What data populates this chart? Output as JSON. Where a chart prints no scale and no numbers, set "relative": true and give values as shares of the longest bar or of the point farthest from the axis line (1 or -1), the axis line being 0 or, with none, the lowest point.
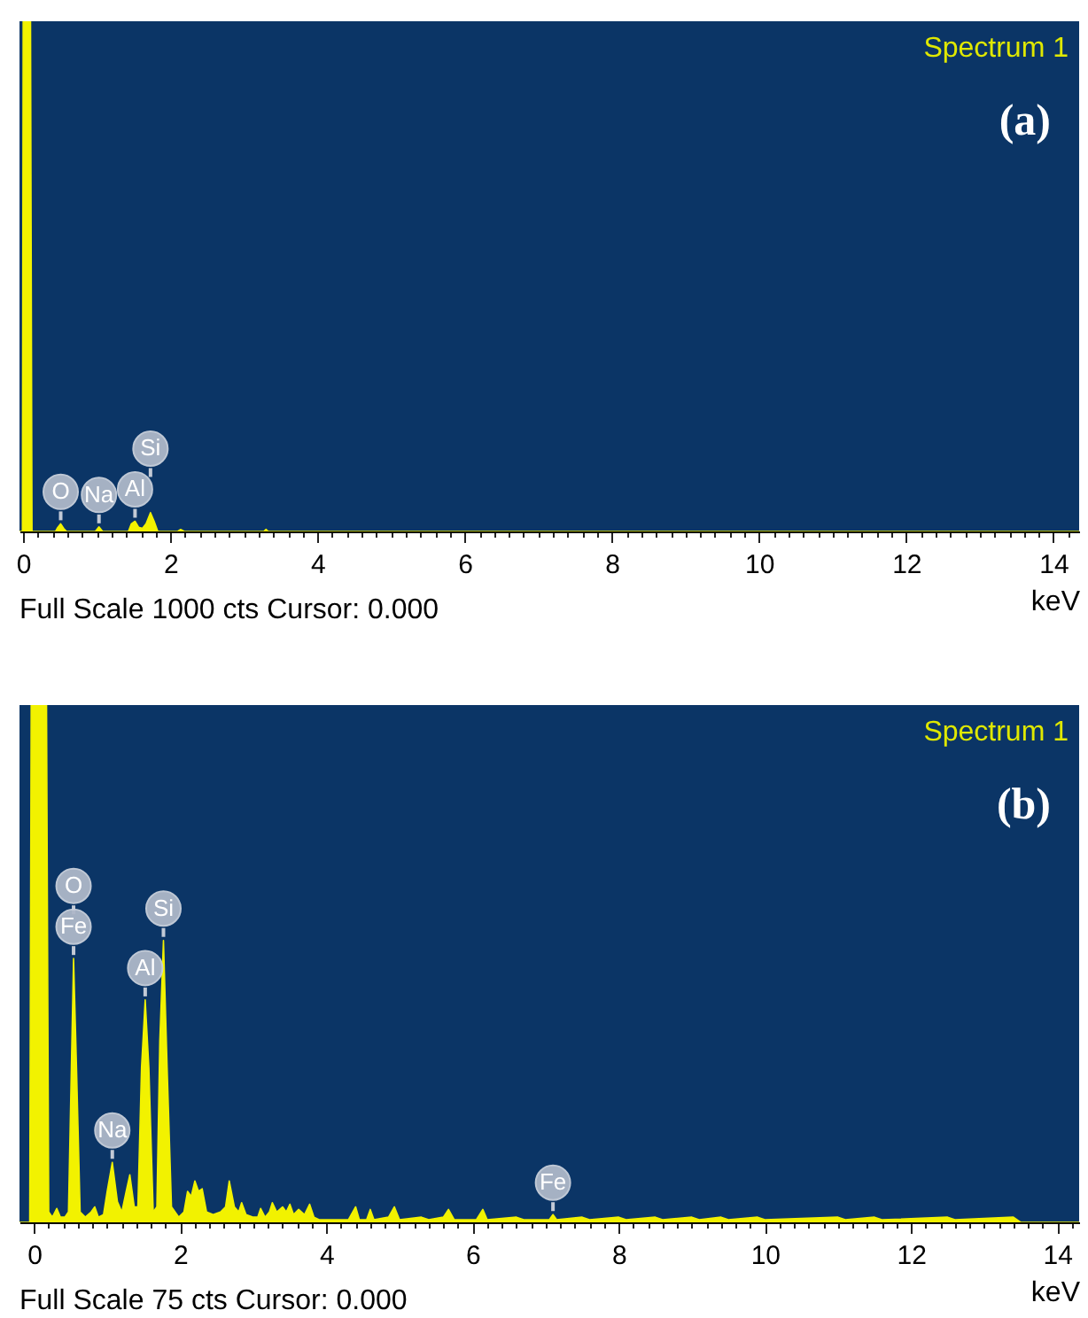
{
  "chart_data": [
    {
      "type": "area",
      "title": "(a)",
      "xlabel": "keV",
      "relative": true,
      "color": "#f2f200",
      "annotations": [
        "Spectrum 1",
        "Full Scale 1000 cts Cursor: 0.000",
        {
          "text": "O",
          "x": 0.51,
          "y": 0.015
        },
        {
          "text": "Na",
          "x": 1.03,
          "y": 0.009
        },
        {
          "text": "Al",
          "x": 1.52,
          "y": 0.02
        },
        {
          "text": "Si",
          "x": 1.73,
          "y": 0.037
        }
      ],
      "xlim": [
        -0.05,
        14.35
      ],
      "xticks": [
        0,
        {
          "value": 0.2,
          "label": null
        },
        {
          "value": 0.4,
          "label": null
        },
        {
          "value": 0.6,
          "label": null
        },
        {
          "value": 0.8,
          "label": null
        },
        {
          "value": 1,
          "label": null
        },
        {
          "value": 1.2,
          "label": null
        },
        {
          "value": 1.4,
          "label": null
        },
        {
          "value": 1.6,
          "label": null
        },
        {
          "value": 1.8,
          "label": null
        },
        2,
        {
          "value": 2.2,
          "label": null
        },
        {
          "value": 2.4,
          "label": null
        },
        {
          "value": 2.6,
          "label": null
        },
        {
          "value": 2.8,
          "label": null
        },
        {
          "value": 3,
          "label": null
        },
        {
          "value": 3.2,
          "label": null
        },
        {
          "value": 3.4,
          "label": null
        },
        {
          "value": 3.6,
          "label": null
        },
        {
          "value": 3.8,
          "label": null
        },
        4,
        {
          "value": 4.2,
          "label": null
        },
        {
          "value": 4.4,
          "label": null
        },
        {
          "value": 4.6,
          "label": null
        },
        {
          "value": 4.8,
          "label": null
        },
        {
          "value": 5,
          "label": null
        },
        {
          "value": 5.2,
          "label": null
        },
        {
          "value": 5.4,
          "label": null
        },
        {
          "value": 5.6,
          "label": null
        },
        {
          "value": 5.8,
          "label": null
        },
        6,
        {
          "value": 6.2,
          "label": null
        },
        {
          "value": 6.4,
          "label": null
        },
        {
          "value": 6.6,
          "label": null
        },
        {
          "value": 6.8,
          "label": null
        },
        {
          "value": 7,
          "label": null
        },
        {
          "value": 7.2,
          "label": null
        },
        {
          "value": 7.4,
          "label": null
        },
        {
          "value": 7.6,
          "label": null
        },
        {
          "value": 7.8,
          "label": null
        },
        8,
        {
          "value": 8.2,
          "label": null
        },
        {
          "value": 8.4,
          "label": null
        },
        {
          "value": 8.6,
          "label": null
        },
        {
          "value": 8.8,
          "label": null
        },
        {
          "value": 9,
          "label": null
        },
        {
          "value": 9.2,
          "label": null
        },
        {
          "value": 9.4,
          "label": null
        },
        {
          "value": 9.6,
          "label": null
        },
        {
          "value": 9.8,
          "label": null
        },
        10,
        {
          "value": 10.2,
          "label": null
        },
        {
          "value": 10.4,
          "label": null
        },
        {
          "value": 10.6,
          "label": null
        },
        {
          "value": 10.8,
          "label": null
        },
        {
          "value": 11,
          "label": null
        },
        {
          "value": 11.2,
          "label": null
        },
        {
          "value": 11.4,
          "label": null
        },
        {
          "value": 11.6,
          "label": null
        },
        {
          "value": 11.8,
          "label": null
        },
        12,
        {
          "value": 12.2,
          "label": null
        },
        {
          "value": 12.4,
          "label": null
        },
        {
          "value": 12.6,
          "label": null
        },
        {
          "value": 12.8,
          "label": null
        },
        {
          "value": 13,
          "label": null
        },
        {
          "value": 13.2,
          "label": null
        },
        {
          "value": 13.4,
          "label": null
        },
        {
          "value": 13.6,
          "label": null
        },
        {
          "value": 13.8,
          "label": null
        },
        14,
        {
          "value": 14.2,
          "label": null
        }
      ],
      "x": [
        -0.05,
        -0.01,
        0,
        0.1,
        0.12,
        0.44,
        0.47,
        0.51,
        0.55,
        0.59,
        0.98,
        1.03,
        1.08,
        1.43,
        1.47,
        1.52,
        1.57,
        1.62,
        1.67,
        1.73,
        1.78,
        1.83,
        2.1,
        2.14,
        2.19,
        3.27,
        3.3,
        3.33,
        14.35
      ],
      "values": [
        0,
        0,
        1,
        1,
        0,
        0,
        0.008,
        0.015,
        0.006,
        0,
        0,
        0.009,
        0,
        0,
        0.015,
        0.02,
        0.008,
        0.006,
        0.015,
        0.037,
        0.02,
        0,
        0,
        0.004,
        0,
        0,
        0.004,
        0,
        0
      ]
    },
    {
      "type": "area",
      "title": "(b)",
      "xlabel": "keV",
      "relative": true,
      "color": "#f2f200",
      "annotations": [
        "Spectrum 1",
        "Full Scale 75 cts Cursor: 0.000",
        {
          "text": "O",
          "x": 0.54,
          "y": 0.51
        },
        {
          "text": "Fe",
          "x": 0.54,
          "y": 0.51
        },
        {
          "text": "Na",
          "x": 1.07,
          "y": 0.116
        },
        {
          "text": "Al",
          "x": 1.52,
          "y": 0.43
        },
        {
          "text": "Si",
          "x": 1.77,
          "y": 0.545
        },
        {
          "text": "Fe",
          "x": 7.1,
          "y": 0.015
        }
      ],
      "xlim": [
        -0.2,
        14.3
      ],
      "xticks": [
        0,
        {
          "value": 0.2,
          "label": null
        },
        {
          "value": 0.4,
          "label": null
        },
        {
          "value": 0.6,
          "label": null
        },
        {
          "value": 0.8,
          "label": null
        },
        {
          "value": 1,
          "label": null
        },
        {
          "value": 1.2,
          "label": null
        },
        {
          "value": 1.4,
          "label": null
        },
        {
          "value": 1.6,
          "label": null
        },
        {
          "value": 1.8,
          "label": null
        },
        2,
        {
          "value": 2.2,
          "label": null
        },
        {
          "value": 2.4,
          "label": null
        },
        {
          "value": 2.6,
          "label": null
        },
        {
          "value": 2.8,
          "label": null
        },
        {
          "value": 3,
          "label": null
        },
        {
          "value": 3.2,
          "label": null
        },
        {
          "value": 3.4,
          "label": null
        },
        {
          "value": 3.6,
          "label": null
        },
        {
          "value": 3.8,
          "label": null
        },
        4,
        {
          "value": 4.2,
          "label": null
        },
        {
          "value": 4.4,
          "label": null
        },
        {
          "value": 4.6,
          "label": null
        },
        {
          "value": 4.8,
          "label": null
        },
        {
          "value": 5,
          "label": null
        },
        {
          "value": 5.2,
          "label": null
        },
        {
          "value": 5.4,
          "label": null
        },
        {
          "value": 5.6,
          "label": null
        },
        {
          "value": 5.8,
          "label": null
        },
        6,
        {
          "value": 6.2,
          "label": null
        },
        {
          "value": 6.4,
          "label": null
        },
        {
          "value": 6.6,
          "label": null
        },
        {
          "value": 6.8,
          "label": null
        },
        {
          "value": 7,
          "label": null
        },
        {
          "value": 7.2,
          "label": null
        },
        {
          "value": 7.4,
          "label": null
        },
        {
          "value": 7.6,
          "label": null
        },
        {
          "value": 7.8,
          "label": null
        },
        8,
        {
          "value": 8.2,
          "label": null
        },
        {
          "value": 8.4,
          "label": null
        },
        {
          "value": 8.6,
          "label": null
        },
        {
          "value": 8.8,
          "label": null
        },
        {
          "value": 9,
          "label": null
        },
        {
          "value": 9.2,
          "label": null
        },
        {
          "value": 9.4,
          "label": null
        },
        {
          "value": 9.6,
          "label": null
        },
        {
          "value": 9.8,
          "label": null
        },
        10,
        {
          "value": 10.2,
          "label": null
        },
        {
          "value": 10.4,
          "label": null
        },
        {
          "value": 10.6,
          "label": null
        },
        {
          "value": 10.8,
          "label": null
        },
        {
          "value": 11,
          "label": null
        },
        {
          "value": 11.2,
          "label": null
        },
        {
          "value": 11.4,
          "label": null
        },
        {
          "value": 11.6,
          "label": null
        },
        {
          "value": 11.8,
          "label": null
        },
        12,
        {
          "value": 12.2,
          "label": null
        },
        {
          "value": 12.4,
          "label": null
        },
        {
          "value": 12.6,
          "label": null
        },
        {
          "value": 12.8,
          "label": null
        },
        {
          "value": 13,
          "label": null
        },
        {
          "value": 13.2,
          "label": null
        },
        {
          "value": 13.4,
          "label": null
        },
        {
          "value": 13.6,
          "label": null
        },
        {
          "value": 13.8,
          "label": null
        },
        14,
        {
          "value": 14.2,
          "label": null
        }
      ],
      "x": [
        -0.2,
        -0.06,
        -0.04,
        0.17,
        0.2,
        0.25,
        0.31,
        0.36,
        0.42,
        0.47,
        0.51,
        0.54,
        0.58,
        0.63,
        0.7,
        0.78,
        0.83,
        0.88,
        0.95,
        1.0,
        1.07,
        1.14,
        1.2,
        1.26,
        1.31,
        1.37,
        1.42,
        1.47,
        1.52,
        1.57,
        1.63,
        1.68,
        1.72,
        1.77,
        1.82,
        1.88,
        1.98,
        2.05,
        2.1,
        2.15,
        2.2,
        2.25,
        2.3,
        2.36,
        2.45,
        2.55,
        2.62,
        2.67,
        2.74,
        2.8,
        2.84,
        2.9,
        3.0,
        3.06,
        3.1,
        3.16,
        3.22,
        3.26,
        3.32,
        3.4,
        3.45,
        3.5,
        3.55,
        3.62,
        3.7,
        3.77,
        3.83,
        3.9,
        4.1,
        4.3,
        4.4,
        4.45,
        4.55,
        4.6,
        4.65,
        4.85,
        4.93,
        5.0,
        5.3,
        5.4,
        5.6,
        5.67,
        5.75,
        6.05,
        6.14,
        6.2,
        6.6,
        6.7,
        7.05,
        7.1,
        7.15,
        7.5,
        7.6,
        8.0,
        8.1,
        8.5,
        8.6,
        9.0,
        9.1,
        9.4,
        9.5,
        9.9,
        10.0,
        11.0,
        11.1,
        11.5,
        11.6,
        12.5,
        12.6,
        13.4,
        13.5,
        14.3
      ],
      "values": [
        0,
        0,
        1,
        1,
        0.02,
        0.01,
        0.027,
        0.01,
        0.01,
        0.02,
        0.3,
        0.51,
        0.3,
        0.02,
        0.01,
        0.02,
        0.03,
        0.01,
        0.015,
        0.06,
        0.116,
        0.04,
        0.02,
        0.06,
        0.092,
        0.03,
        0.03,
        0.3,
        0.43,
        0.3,
        0.02,
        0.03,
        0.35,
        0.545,
        0.3,
        0.03,
        0.01,
        0.02,
        0.06,
        0.05,
        0.08,
        0.06,
        0.065,
        0.02,
        0.015,
        0.02,
        0.03,
        0.08,
        0.03,
        0.02,
        0.038,
        0.015,
        0.01,
        0.01,
        0.027,
        0.01,
        0.02,
        0.038,
        0.02,
        0.03,
        0.02,
        0.035,
        0.015,
        0.025,
        0.015,
        0.035,
        0.01,
        0.005,
        0.005,
        0.005,
        0.03,
        0.005,
        0.005,
        0.025,
        0.005,
        0.01,
        0.03,
        0.005,
        0.01,
        0.005,
        0.01,
        0.025,
        0.005,
        0.005,
        0.025,
        0.005,
        0.01,
        0.005,
        0.005,
        0.015,
        0.005,
        0.01,
        0.005,
        0.01,
        0.005,
        0.01,
        0.005,
        0.01,
        0.005,
        0.01,
        0.005,
        0.01,
        0.005,
        0.01,
        0.005,
        0.01,
        0.005,
        0.01,
        0.005,
        0.01,
        0,
        0
      ]
    }
  ]
}
